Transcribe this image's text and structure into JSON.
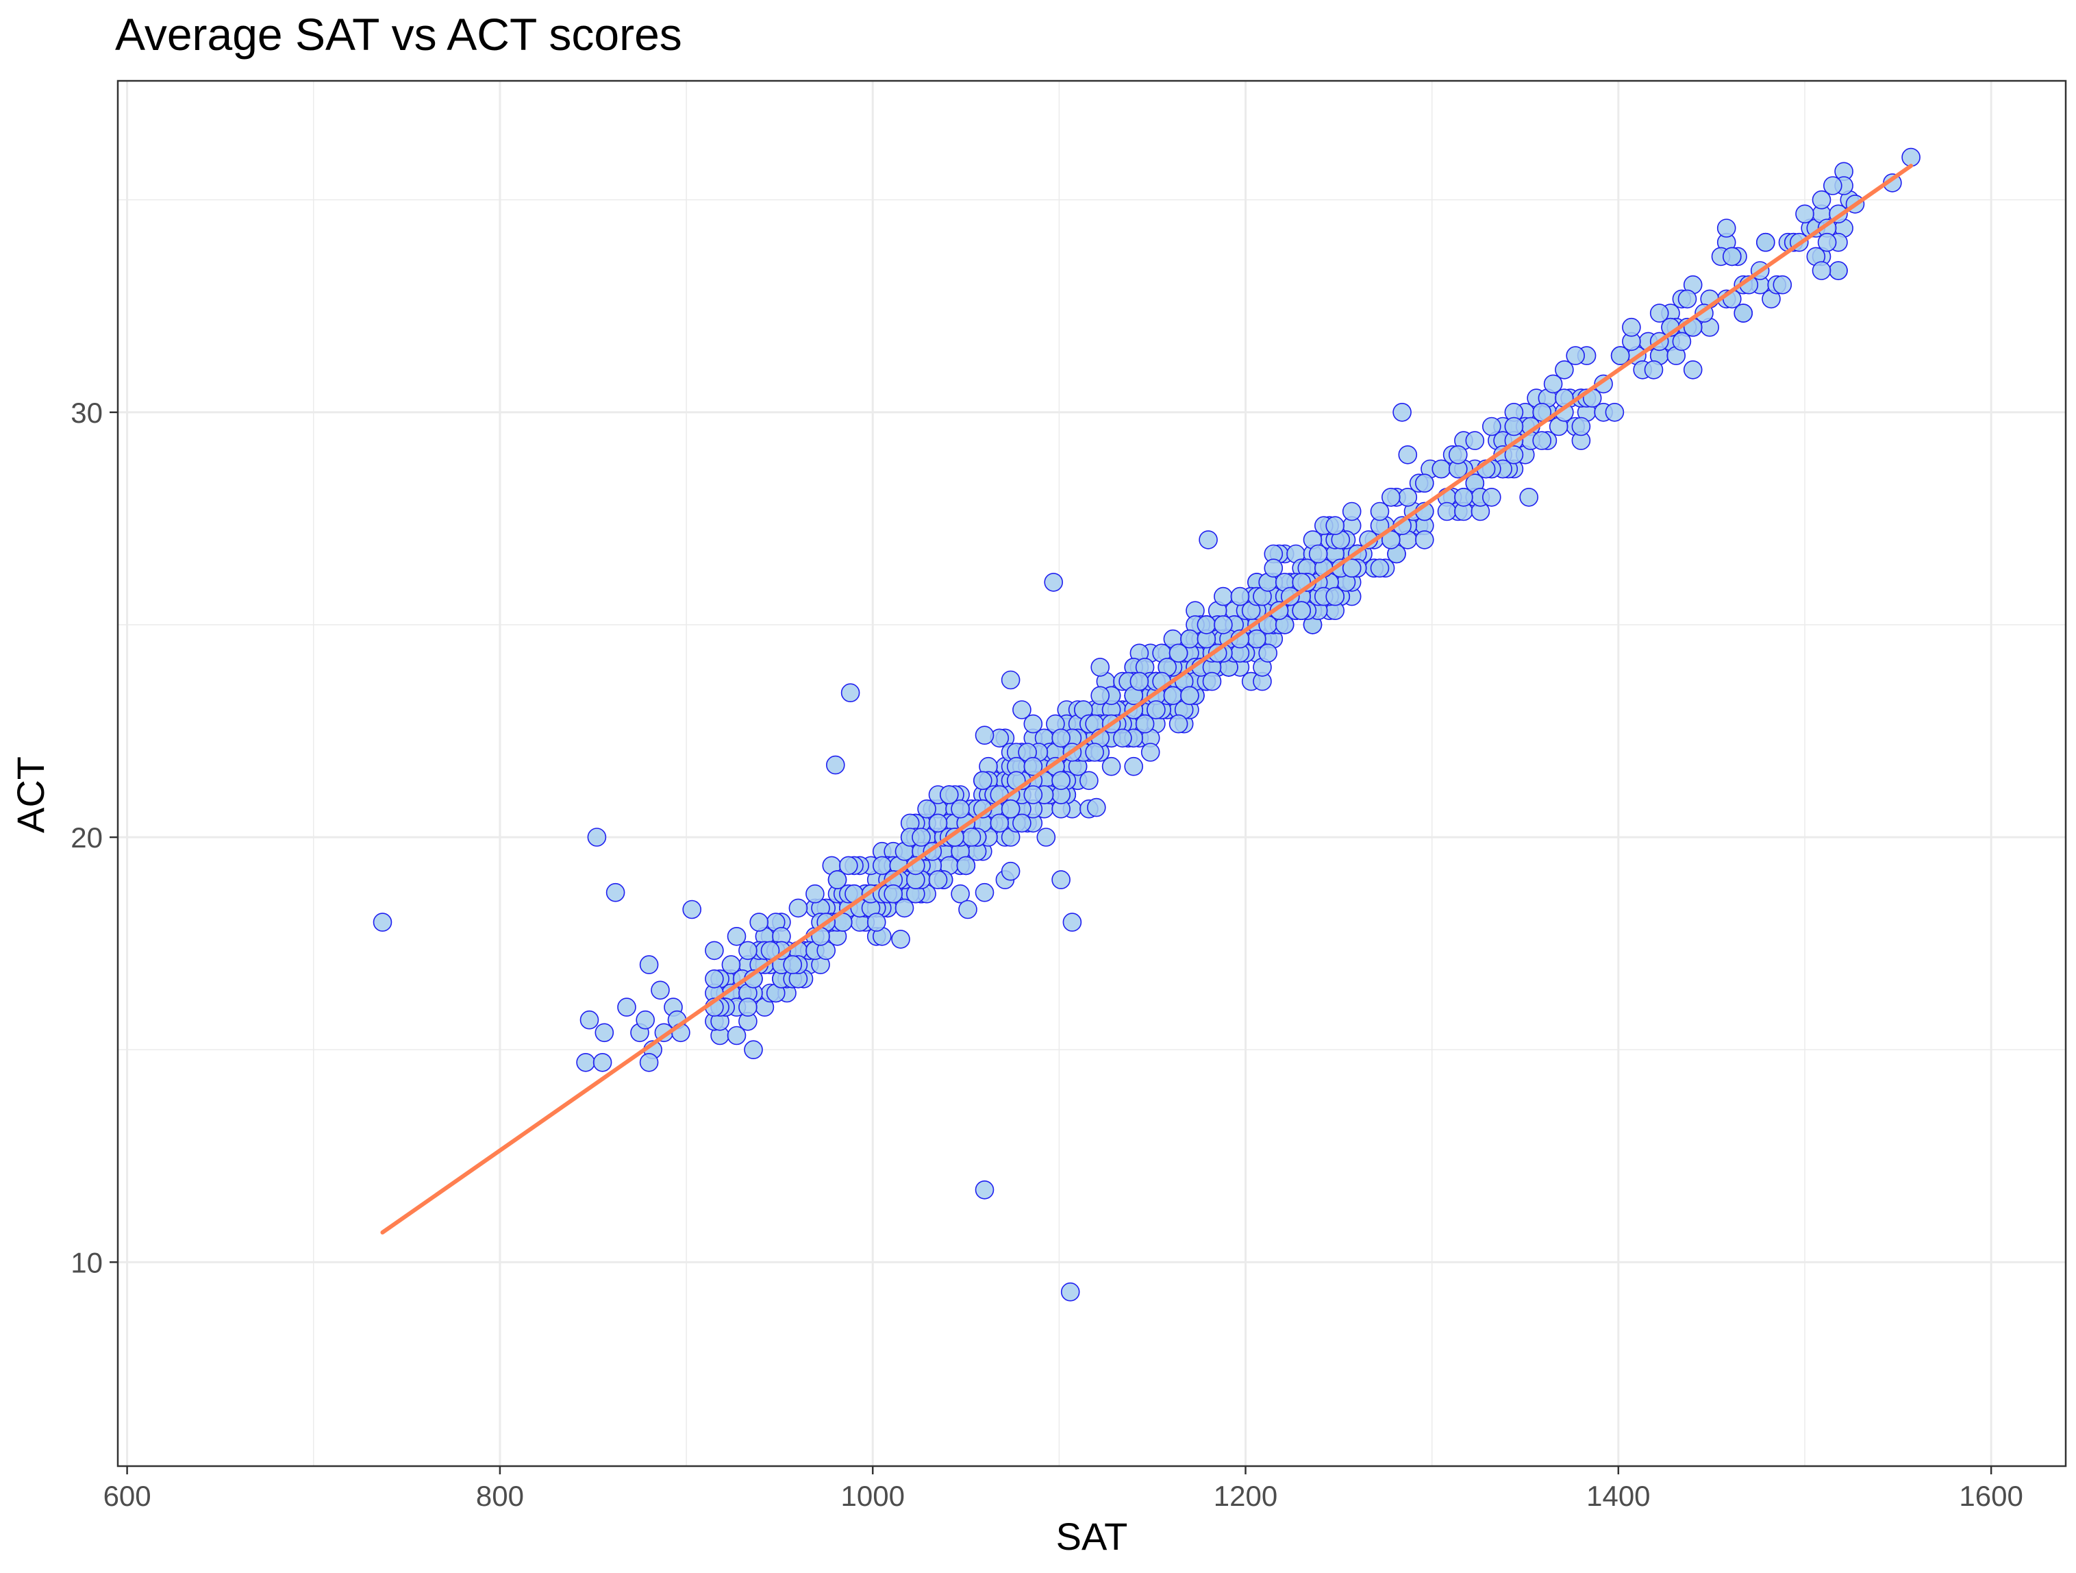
{
  "chart_data": {
    "type": "scatter",
    "title": "Average SAT vs ACT scores",
    "xlabel": "SAT",
    "ylabel": "ACT",
    "xlim": [
      595,
      1640
    ],
    "ylim": [
      5.2,
      37.8
    ],
    "x_ticks": [
      600,
      800,
      1000,
      1200,
      1400,
      1600
    ],
    "y_ticks": [
      10,
      20,
      30
    ],
    "x_minor_grid": [
      700,
      900,
      1100,
      1300,
      1500
    ],
    "y_minor_grid": [
      15,
      25,
      35
    ],
    "grid": true,
    "legend": "none",
    "colors": {
      "point_fill": "#a8cfee",
      "point_stroke": "#1f1ff0",
      "trend_line": "#ff7f50",
      "grid": "#ebebeb",
      "panel_border": "#333333"
    },
    "trend_line": {
      "x": [
        737,
        1557
      ],
      "y": [
        10.7,
        35.8
      ]
    },
    "outliers": [
      [
        737,
        18.0
      ],
      [
        852,
        20.0
      ],
      [
        862,
        18.7
      ],
      [
        1097,
        26.0
      ],
      [
        988,
        23.4
      ],
      [
        980,
        21.7
      ],
      [
        1180,
        27.0
      ],
      [
        1284,
        30.0
      ],
      [
        1352,
        28.0
      ],
      [
        1060,
        11.7
      ],
      [
        1106,
        9.3
      ],
      [
        1107,
        18.0
      ],
      [
        1101,
        19.0
      ],
      [
        936,
        15.0
      ],
      [
        903,
        18.3
      ],
      [
        1074,
        23.7
      ],
      [
        1060,
        22.4
      ],
      [
        1296,
        27.0
      ],
      [
        1093,
        20.0
      ],
      [
        1074,
        19.2
      ],
      [
        1060,
        18.7
      ],
      [
        1015,
        17.6
      ],
      [
        1051,
        18.3
      ],
      [
        880,
        14.7
      ],
      [
        1120,
        20.7
      ]
    ],
    "low_cluster": [
      [
        846,
        14.7
      ],
      [
        855,
        14.7
      ],
      [
        848,
        15.7
      ],
      [
        856,
        15.4
      ],
      [
        868,
        16.0
      ],
      [
        875,
        15.4
      ],
      [
        878,
        15.7
      ],
      [
        882,
        15.0
      ],
      [
        880,
        17.0
      ],
      [
        886,
        16.4
      ],
      [
        888,
        15.4
      ],
      [
        893,
        16.0
      ],
      [
        895,
        15.7
      ],
      [
        897,
        15.4
      ]
    ],
    "cluster_seed": 20240611,
    "cluster_count": 1040,
    "cluster_x_range": [
      915,
      1525
    ],
    "point_radius": 13
  }
}
